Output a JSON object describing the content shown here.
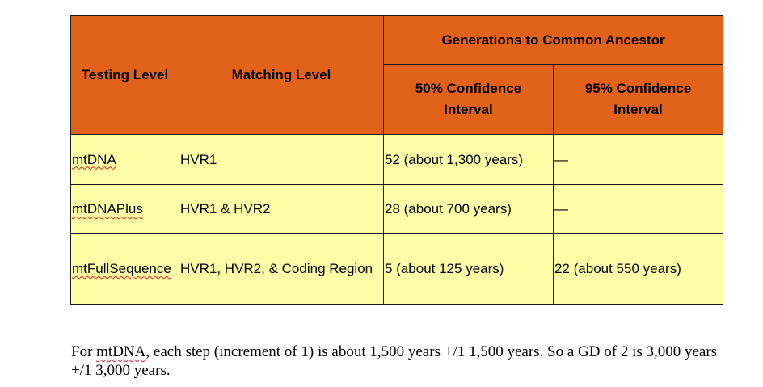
{
  "table": {
    "headers": {
      "testing_level": "Testing Level",
      "matching_level": "Matching Level",
      "generations": "Generations to Common Ancestor",
      "ci50": "50% Confidence Interval",
      "ci95": "95% Confidence Interval"
    },
    "rows": [
      {
        "testing": "mtDNA",
        "matching": "HVR1",
        "ci50": "52 (about 1,300 years)",
        "ci95": "—"
      },
      {
        "testing": "mtDNAPlus",
        "matching": "HVR1 & HVR2",
        "ci50": "28 (about 700 years)",
        "ci95": "—"
      },
      {
        "testing": "mtFullSequence",
        "matching": "HVR1, HVR2, & Coding Region",
        "ci50": "5 (about 125 years)",
        "ci95": "22 (about 550 years)"
      }
    ]
  },
  "note": {
    "prefix": "For ",
    "term": "mtDNA",
    "rest": ", each step (increment of 1) is about 1,500 years +/1 1,500 years. So a GD of 2 is 3,000 years +/1 3,000 years."
  },
  "colors": {
    "header_bg": "#e3621a",
    "cell_bg": "#ffffa8"
  }
}
